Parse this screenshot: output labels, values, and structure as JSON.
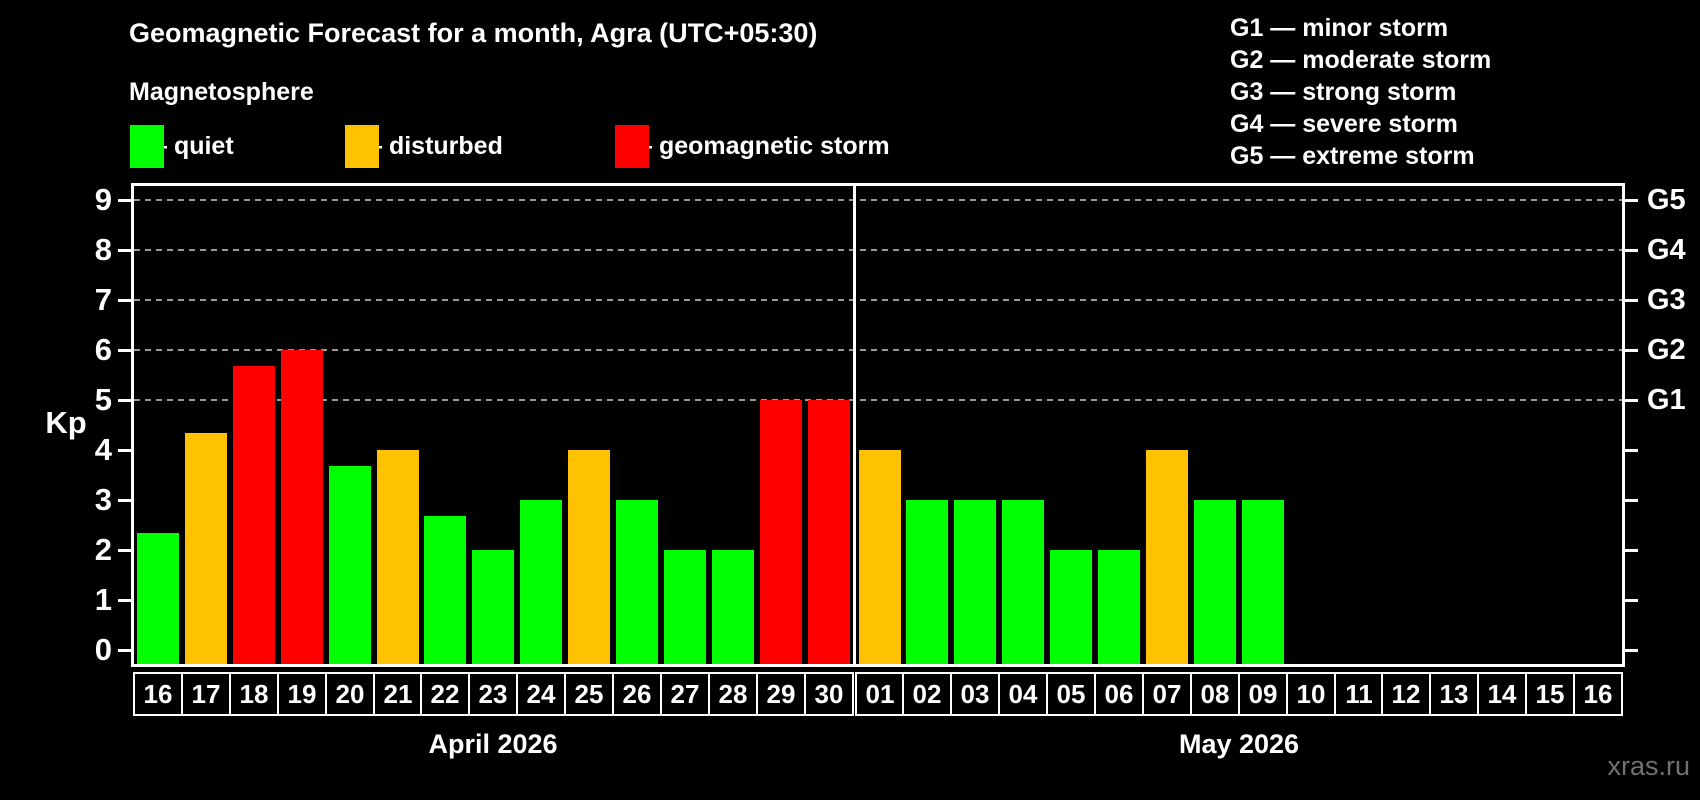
{
  "title": "Geomagnetic Forecast for a month, Agra (UTC+05:30)",
  "subtitle": "Magnetosphere",
  "watermark": "xras.ru",
  "kp_legend": [
    {
      "status": "quiet",
      "label": "— quiet",
      "color": "#00ff00"
    },
    {
      "status": "disturbed",
      "label": "— disturbed",
      "color": "#ffc200"
    },
    {
      "status": "storm",
      "label": "— geomagnetic storm",
      "color": "#ff0000"
    }
  ],
  "g_legend": [
    "G1 — minor storm",
    "G2 — moderate storm",
    "G3 — strong storm",
    "G4 — severe storm",
    "G5 — extreme storm"
  ],
  "chart_data": {
    "type": "bar",
    "title": "Geomagnetic Forecast for a month, Agra (UTC+05:30)",
    "ylabel": "Kp",
    "ylim": [
      0,
      9
    ],
    "yticks": [
      0,
      1,
      2,
      3,
      4,
      5,
      6,
      7,
      8,
      9
    ],
    "gridlines_at": [
      5,
      6,
      7,
      8,
      9
    ],
    "right_axis_labels": {
      "5": "G1",
      "6": "G2",
      "7": "G3",
      "8": "G4",
      "9": "G5"
    },
    "grid": "dashed horizontal at G-storm levels only",
    "legend_position": "top",
    "status_colors": {
      "quiet": "#00ff00",
      "disturbed": "#ffc200",
      "storm": "#ff0000"
    },
    "groups": [
      {
        "label": "April 2026",
        "bars": [
          {
            "day": "16",
            "kp": 2.33,
            "status": "quiet"
          },
          {
            "day": "17",
            "kp": 4.33,
            "status": "disturbed"
          },
          {
            "day": "18",
            "kp": 5.67,
            "status": "storm"
          },
          {
            "day": "19",
            "kp": 6.0,
            "status": "storm"
          },
          {
            "day": "20",
            "kp": 3.67,
            "status": "quiet"
          },
          {
            "day": "21",
            "kp": 4.0,
            "status": "disturbed"
          },
          {
            "day": "22",
            "kp": 2.67,
            "status": "quiet"
          },
          {
            "day": "23",
            "kp": 2.0,
            "status": "quiet"
          },
          {
            "day": "24",
            "kp": 3.0,
            "status": "quiet"
          },
          {
            "day": "25",
            "kp": 4.0,
            "status": "disturbed"
          },
          {
            "day": "26",
            "kp": 3.0,
            "status": "quiet"
          },
          {
            "day": "27",
            "kp": 2.0,
            "status": "quiet"
          },
          {
            "day": "28",
            "kp": 2.0,
            "status": "quiet"
          },
          {
            "day": "29",
            "kp": 5.0,
            "status": "storm"
          },
          {
            "day": "30",
            "kp": 5.0,
            "status": "storm"
          }
        ]
      },
      {
        "label": "May 2026",
        "bars": [
          {
            "day": "01",
            "kp": 4.0,
            "status": "disturbed"
          },
          {
            "day": "02",
            "kp": 3.0,
            "status": "quiet"
          },
          {
            "day": "03",
            "kp": 3.0,
            "status": "quiet"
          },
          {
            "day": "04",
            "kp": 3.0,
            "status": "quiet"
          },
          {
            "day": "05",
            "kp": 2.0,
            "status": "quiet"
          },
          {
            "day": "06",
            "kp": 2.0,
            "status": "quiet"
          },
          {
            "day": "07",
            "kp": 4.0,
            "status": "disturbed"
          },
          {
            "day": "08",
            "kp": 3.0,
            "status": "quiet"
          },
          {
            "day": "09",
            "kp": 3.0,
            "status": "quiet"
          },
          {
            "day": "10",
            "kp": null,
            "status": null
          },
          {
            "day": "11",
            "kp": null,
            "status": null
          },
          {
            "day": "12",
            "kp": null,
            "status": null
          },
          {
            "day": "13",
            "kp": null,
            "status": null
          },
          {
            "day": "14",
            "kp": null,
            "status": null
          },
          {
            "day": "15",
            "kp": null,
            "status": null
          },
          {
            "day": "16",
            "kp": null,
            "status": null
          }
        ]
      }
    ]
  }
}
